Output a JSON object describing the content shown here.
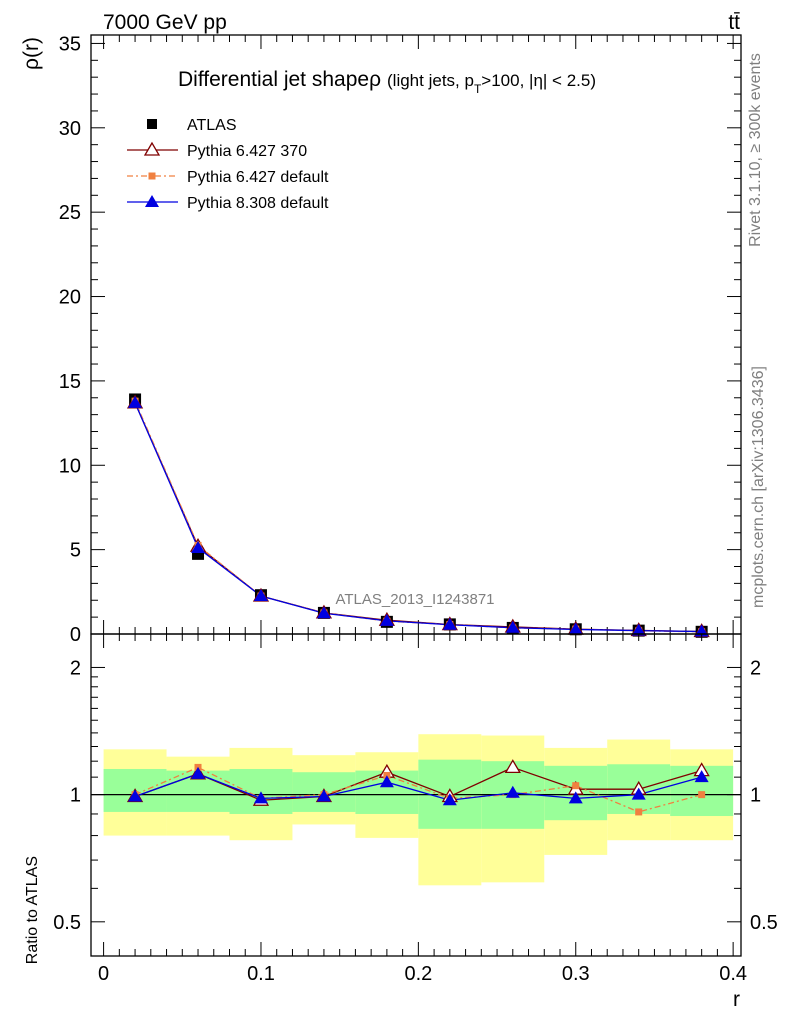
{
  "header": {
    "energy_label": "7000 GeV pp",
    "process_label": "tt̄"
  },
  "side_labels": {
    "rivet": "Rivet 3.1.10, ≥ 300k events",
    "mcplots": "mcplots.cern.ch [arXiv:1306.3436]"
  },
  "watermark": "ATLAS_2013_I1243871",
  "colors": {
    "atlas": "#000000",
    "pythia6_370": "#7f0000",
    "pythia6_default": "#f08040",
    "pythia8_default": "#0000e0",
    "band_inner": "#99ff99",
    "band_outer": "#ffff99"
  },
  "chart_data": [
    {
      "type": "scatter",
      "panel": "main",
      "title_main": "Differential jet shape",
      "title_symbol": "ρ",
      "title_detail": "(light jets, p",
      "title_detail_sub": "T",
      "title_detail_tail": ">100, |η| < 2.5)",
      "ylabel": "ρ(r)",
      "xlabel": "r",
      "xlim": [
        -0.008,
        0.405
      ],
      "ylim": [
        0,
        35.5
      ],
      "y_ticks": [
        0,
        5,
        10,
        15,
        20,
        25,
        30,
        35
      ],
      "y_tick_labels": [
        "0",
        "5",
        "10",
        "15",
        "20",
        "25",
        "30",
        "35"
      ],
      "x": [
        0.02,
        0.06,
        0.1,
        0.14,
        0.18,
        0.22,
        0.26,
        0.3,
        0.34,
        0.38
      ],
      "legend_position": "top-left",
      "series": [
        {
          "name": "ATLAS",
          "marker": "square",
          "values": [
            13.9,
            4.75,
            2.3,
            1.25,
            0.72,
            0.57,
            0.36,
            0.28,
            0.2,
            0.13
          ]
        },
        {
          "name": "Pythia 6.427 370",
          "marker": "open-triangle",
          "values": [
            13.7,
            5.2,
            2.25,
            1.25,
            0.82,
            0.56,
            0.42,
            0.29,
            0.21,
            0.15
          ]
        },
        {
          "name": "Pythia 6.427 default",
          "marker": "small-square",
          "dashed": true,
          "values": [
            13.8,
            5.25,
            2.25,
            1.25,
            0.76,
            0.56,
            0.36,
            0.29,
            0.19,
            0.13
          ]
        },
        {
          "name": "Pythia 8.308 default",
          "marker": "filled-triangle",
          "values": [
            13.7,
            5.1,
            2.25,
            1.23,
            0.78,
            0.55,
            0.37,
            0.27,
            0.2,
            0.145
          ]
        }
      ]
    },
    {
      "type": "scatter",
      "panel": "ratio",
      "ylabel": "Ratio to ATLAS",
      "xlabel": "r",
      "log_y": true,
      "ylim": [
        0.415,
        2.4
      ],
      "y_ticks": [
        0.5,
        1,
        2
      ],
      "y_tick_labels": [
        "0.5",
        "1",
        "2"
      ],
      "x": [
        0.02,
        0.06,
        0.1,
        0.14,
        0.18,
        0.22,
        0.26,
        0.3,
        0.34,
        0.38
      ],
      "x_ticks": [
        0,
        0.1,
        0.2,
        0.3,
        0.4
      ],
      "x_tick_labels": [
        "0",
        "0.1",
        "0.2",
        "0.3",
        "0.4"
      ],
      "bin_edges": [
        0.0,
        0.04,
        0.08,
        0.12,
        0.16,
        0.2,
        0.24,
        0.28,
        0.32,
        0.36,
        0.4
      ],
      "band_inner": {
        "low": [
          0.91,
          0.91,
          0.9,
          0.91,
          0.9,
          0.83,
          0.83,
          0.87,
          0.9,
          0.89
        ],
        "high": [
          1.15,
          1.14,
          1.15,
          1.13,
          1.14,
          1.21,
          1.2,
          1.17,
          1.18,
          1.17
        ]
      },
      "band_outer": {
        "low": [
          0.8,
          0.8,
          0.78,
          0.85,
          0.79,
          0.61,
          0.62,
          0.72,
          0.78,
          0.78
        ],
        "high": [
          1.28,
          1.23,
          1.29,
          1.24,
          1.26,
          1.39,
          1.38,
          1.29,
          1.35,
          1.28
        ]
      },
      "reference": 1,
      "series": [
        {
          "name": "Pythia 6.427 370",
          "marker": "open-triangle",
          "values": [
            0.99,
            1.12,
            0.97,
            0.99,
            1.13,
            0.99,
            1.16,
            1.03,
            1.03,
            1.14
          ]
        },
        {
          "name": "Pythia 6.427 default",
          "marker": "small-square",
          "dashed": true,
          "values": [
            1.0,
            1.16,
            0.98,
            1.0,
            1.11,
            0.98,
            1.0,
            1.05,
            0.91,
            1.0
          ]
        },
        {
          "name": "Pythia 8.308 default",
          "marker": "filled-triangle",
          "values": [
            0.99,
            1.12,
            0.98,
            0.99,
            1.07,
            0.97,
            1.01,
            0.98,
            1.0,
            1.1
          ]
        }
      ]
    }
  ]
}
